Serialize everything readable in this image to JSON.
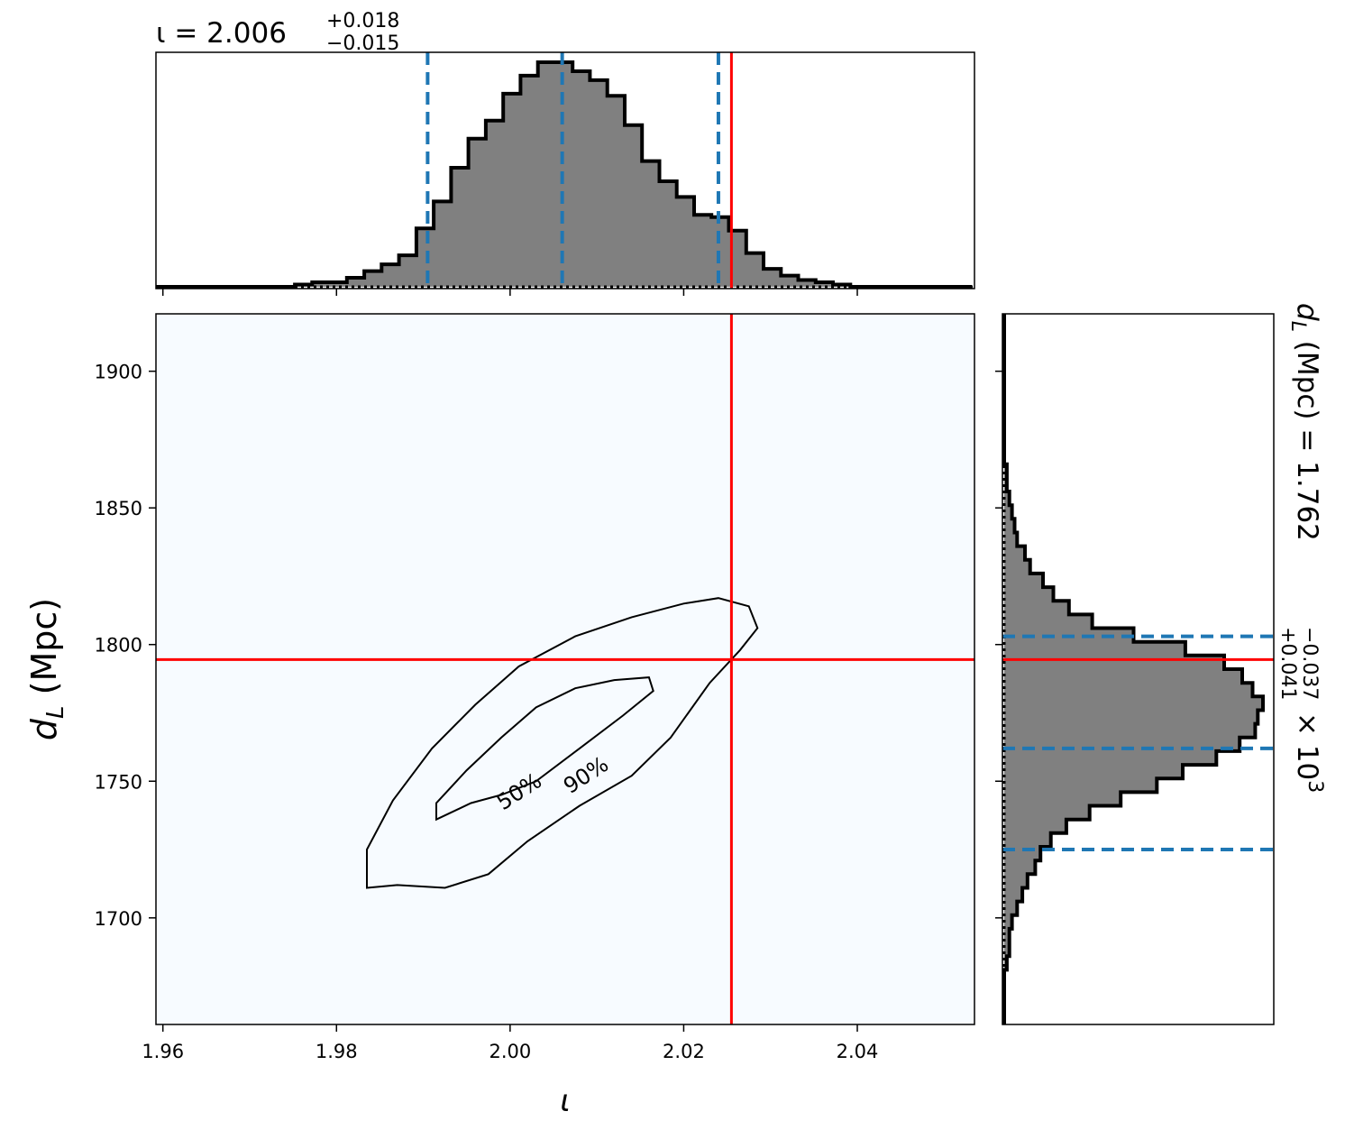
{
  "chart_data": {
    "type": "corner",
    "parameters": [
      {
        "symbol": "ι",
        "label": "ι"
      },
      {
        "symbol": "d_L",
        "label": "d_L (Mpc)"
      }
    ],
    "iota_title": {
      "lhs": "ι = 2.006",
      "plus": "+0.018",
      "minus": "−0.015"
    },
    "dl_title": {
      "lhs": "d",
      "sub": "L",
      "mid": " (Mpc) = 1.762",
      "plus": "+0.041",
      "minus": "−0.037",
      "tail": " × 10",
      "exp": "3"
    },
    "xlabel": "ι",
    "ylabel": {
      "main": "d",
      "sub": "L",
      "rest": " (Mpc)"
    },
    "xlim": [
      1.9592,
      2.0535
    ],
    "ylim": [
      1661,
      1921
    ],
    "xticks": [
      {
        "v": 1.96,
        "label": "1.96"
      },
      {
        "v": 1.98,
        "label": "1.98"
      },
      {
        "v": 2.0,
        "label": "2.00"
      },
      {
        "v": 2.02,
        "label": "2.02"
      },
      {
        "v": 2.04,
        "label": "2.04"
      }
    ],
    "yticks": [
      {
        "v": 1700,
        "label": "1700"
      },
      {
        "v": 1750,
        "label": "1750"
      },
      {
        "v": 1800,
        "label": "1800"
      },
      {
        "v": 1850,
        "label": "1850"
      },
      {
        "v": 1900,
        "label": "1900"
      }
    ],
    "injection": {
      "iota": 2.0255,
      "dl": 1794.5
    },
    "iota_quantiles": [
      1.9905,
      2.006,
      2.024
    ],
    "dl_quantiles": [
      1725,
      1762,
      1803
    ],
    "iota_hist": {
      "edges_start": 1.9592,
      "bin_width": 0.002,
      "counts": [
        0.0,
        0.0,
        0.0,
        0.0,
        0.0,
        0.0,
        0.0,
        0.0,
        0.01,
        0.02,
        0.02,
        0.04,
        0.07,
        0.1,
        0.14,
        0.26,
        0.38,
        0.53,
        0.66,
        0.74,
        0.86,
        0.94,
        1.0,
        1.0,
        0.96,
        0.92,
        0.85,
        0.72,
        0.56,
        0.47,
        0.4,
        0.32,
        0.31,
        0.25,
        0.15,
        0.08,
        0.05,
        0.03,
        0.02,
        0.01,
        0.0,
        0.0,
        0.0,
        0.0,
        0.0,
        0.0,
        0.0
      ]
    },
    "dl_hist": {
      "edges_start": 1661,
      "bin_width": 5,
      "counts": [
        0.0,
        0.0,
        0.0,
        0.0,
        0.01,
        0.02,
        0.02,
        0.03,
        0.05,
        0.07,
        0.09,
        0.12,
        0.14,
        0.18,
        0.24,
        0.33,
        0.45,
        0.59,
        0.69,
        0.82,
        0.91,
        0.97,
        0.98,
        1.0,
        0.96,
        0.92,
        0.85,
        0.7,
        0.5,
        0.34,
        0.25,
        0.19,
        0.15,
        0.1,
        0.08,
        0.05,
        0.04,
        0.03,
        0.02,
        0.01,
        0.01,
        0.0,
        0.0,
        0.0,
        0.0,
        0.0,
        0.0,
        0.0,
        0.0,
        0.0,
        0.0,
        0.0
      ]
    },
    "density_2d": {
      "center": [
        2.006,
        1762
      ],
      "sigma": [
        0.0081,
        0.0385
      ],
      "rho": 0.92,
      "colormap": "Blues"
    },
    "contour_labels": [
      {
        "text": "50%",
        "at": [
          2.0015,
          1744
        ]
      },
      {
        "text": "90%",
        "at": [
          2.0092,
          1750
        ]
      }
    ],
    "contours": {
      "c50": [
        [
          1.9915,
          1736
        ],
        [
          1.9955,
          1742
        ],
        [
          1.999,
          1745
        ],
        [
          2.003,
          1750
        ],
        [
          2.008,
          1762
        ],
        [
          2.013,
          1774
        ],
        [
          2.0165,
          1783
        ],
        [
          2.016,
          1788
        ],
        [
          2.012,
          1787
        ],
        [
          2.0075,
          1784
        ],
        [
          2.003,
          1777
        ],
        [
          1.999,
          1766
        ],
        [
          1.995,
          1754
        ],
        [
          1.9915,
          1742
        ]
      ],
      "c90": [
        [
          1.9835,
          1711
        ],
        [
          1.987,
          1712
        ],
        [
          1.9925,
          1711
        ],
        [
          1.9975,
          1716
        ],
        [
          2.002,
          1728
        ],
        [
          2.008,
          1741
        ],
        [
          2.014,
          1752
        ],
        [
          2.0185,
          1766
        ],
        [
          2.023,
          1786
        ],
        [
          2.0265,
          1798
        ],
        [
          2.0285,
          1806
        ],
        [
          2.0275,
          1814
        ],
        [
          2.024,
          1817
        ],
        [
          2.02,
          1815
        ],
        [
          2.014,
          1810
        ],
        [
          2.0075,
          1803
        ],
        [
          2.001,
          1792
        ],
        [
          1.996,
          1778
        ],
        [
          1.991,
          1762
        ],
        [
          1.9865,
          1743
        ],
        [
          1.9835,
          1725
        ]
      ]
    },
    "colors": {
      "injection": "#ff0000",
      "quantile": "#1f77b4",
      "hist_fill": "#808080",
      "hist_edge": "#000000",
      "contour": "#000000"
    },
    "grid": false
  }
}
